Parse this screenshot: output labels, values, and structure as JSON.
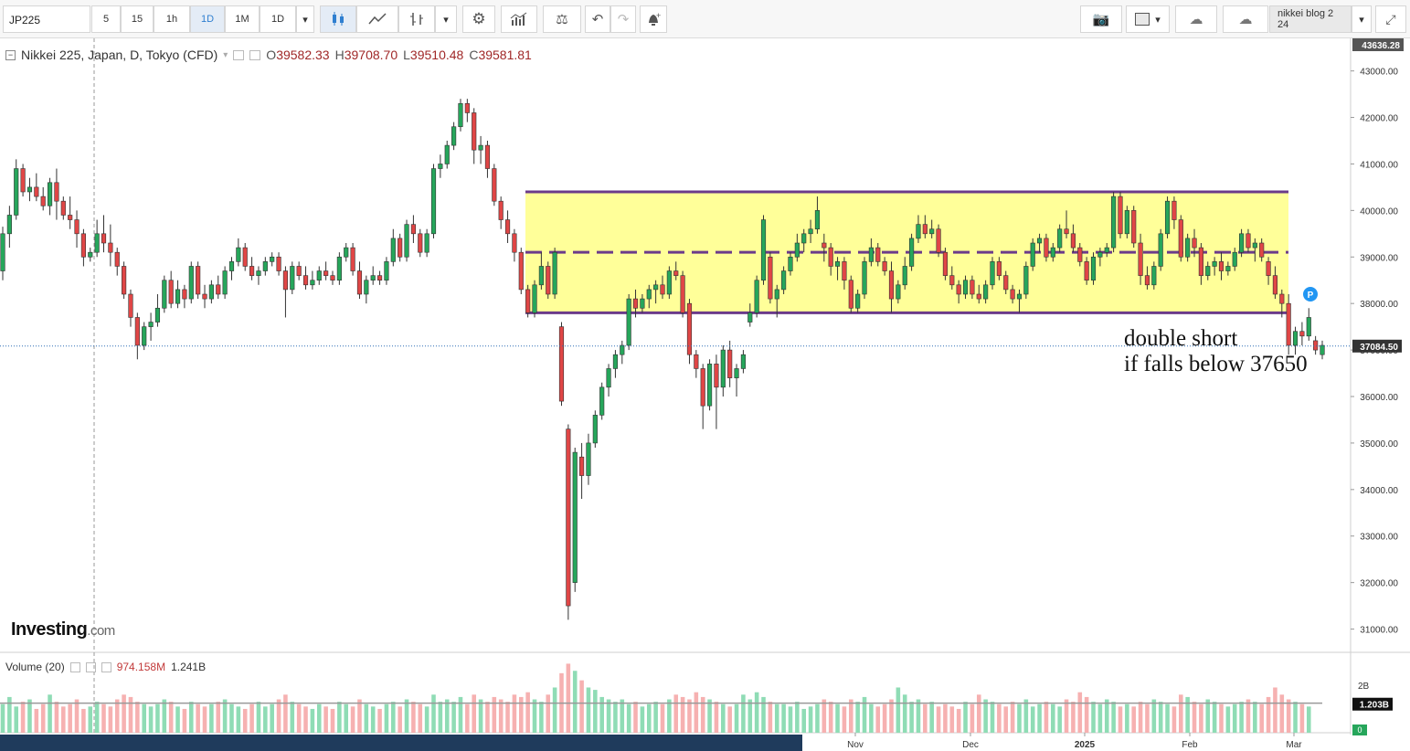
{
  "toolbar": {
    "symbol": "JP225",
    "intervals": [
      "5",
      "15",
      "1h",
      "1D",
      "1M",
      "1D"
    ],
    "active_interval": "1D",
    "layout_name": "nikkei blog 2 24"
  },
  "legend": {
    "name": "Nikkei 225, Japan, D, Tokyo (CFD)",
    "o_label": "O",
    "o": "39582.33",
    "h_label": "H",
    "h": "39708.70",
    "l_label": "L",
    "l": "39510.48",
    "c_label": "C",
    "c": "39581.81"
  },
  "volume_legend": {
    "name": "Volume (20)",
    "value": "974.158M",
    "avg": "1.241B"
  },
  "brand": {
    "main": "Investing",
    "suffix": ".com"
  },
  "annotation": {
    "line1": "double short",
    "line2": "if falls below 37650"
  },
  "colors": {
    "up": "#26a65b",
    "down": "#e04646",
    "zone_fill": "#ffff99",
    "zone_border": "#6b3b8a",
    "vol_up": "#8fdcb5",
    "vol_down": "#f6b1b1"
  },
  "chart_data": {
    "type": "candlestick",
    "price_axis_ticks": [
      "43000.00",
      "42000.00",
      "41000.00",
      "40000.00",
      "39000.00",
      "38000.00",
      "37000.00",
      "36000.00",
      "35000.00",
      "34000.00",
      "33000.00",
      "32000.00",
      "31000.00"
    ],
    "top_label": "43636.28",
    "last_price_label": "37084.50",
    "ylim": [
      30500,
      43700
    ],
    "time_labels": [
      "Nov",
      "Dec",
      "2025",
      "Feb",
      "Mar"
    ],
    "volume_axis": {
      "tick": "2B",
      "last_label": "1.203B",
      "zero_label": "0"
    },
    "zone": {
      "top": 40400,
      "mid": 39100,
      "bottom": 37800
    },
    "candles": [
      [
        38700,
        39650,
        38500,
        39500
      ],
      [
        39500,
        40100,
        39200,
        39900
      ],
      [
        39900,
        41100,
        39800,
        40900
      ],
      [
        40900,
        41000,
        40300,
        40400
      ],
      [
        40400,
        40700,
        40200,
        40500
      ],
      [
        40500,
        40800,
        40200,
        40300
      ],
      [
        40300,
        40500,
        40000,
        40100
      ],
      [
        40100,
        40700,
        39900,
        40600
      ],
      [
        40600,
        40900,
        39800,
        40200
      ],
      [
        40200,
        40300,
        39800,
        39900
      ],
      [
        39900,
        40300,
        39600,
        39800
      ],
      [
        39800,
        40000,
        39200,
        39500
      ],
      [
        39500,
        39600,
        38800,
        39000
      ],
      [
        39000,
        39200,
        38900,
        39100
      ],
      [
        39100,
        39800,
        39000,
        39500
      ],
      [
        39500,
        39900,
        39100,
        39300
      ],
      [
        39300,
        39700,
        38800,
        39100
      ],
      [
        39100,
        39200,
        38600,
        38800
      ],
      [
        38800,
        38900,
        38100,
        38200
      ],
      [
        38200,
        38300,
        37500,
        37700
      ],
      [
        37700,
        37800,
        36800,
        37100
      ],
      [
        37100,
        37600,
        37000,
        37500
      ],
      [
        37500,
        37800,
        37200,
        37600
      ],
      [
        37600,
        38200,
        37500,
        37900
      ],
      [
        37900,
        38600,
        37800,
        38500
      ],
      [
        38500,
        38700,
        37900,
        38000
      ],
      [
        38000,
        38500,
        37900,
        38300
      ],
      [
        38300,
        38400,
        37900,
        38100
      ],
      [
        38100,
        38900,
        38000,
        38800
      ],
      [
        38800,
        38900,
        38100,
        38200
      ],
      [
        38200,
        38400,
        37900,
        38100
      ],
      [
        38100,
        38500,
        38000,
        38400
      ],
      [
        38400,
        38600,
        38100,
        38200
      ],
      [
        38200,
        38800,
        38100,
        38700
      ],
      [
        38700,
        39000,
        38500,
        38900
      ],
      [
        38900,
        39400,
        38800,
        39200
      ],
      [
        39200,
        39300,
        38700,
        38800
      ],
      [
        38800,
        39000,
        38500,
        38600
      ],
      [
        38600,
        38800,
        38400,
        38700
      ],
      [
        38700,
        39000,
        38600,
        38900
      ],
      [
        38900,
        39100,
        38800,
        39000
      ],
      [
        39000,
        39100,
        38600,
        38700
      ],
      [
        38700,
        38800,
        37700,
        38300
      ],
      [
        38300,
        38900,
        38200,
        38800
      ],
      [
        38800,
        38900,
        38500,
        38600
      ],
      [
        38600,
        38800,
        38300,
        38400
      ],
      [
        38400,
        38700,
        38300,
        38500
      ],
      [
        38500,
        38800,
        38400,
        38700
      ],
      [
        38700,
        38900,
        38500,
        38600
      ],
      [
        38600,
        38700,
        38400,
        38500
      ],
      [
        38500,
        39100,
        38400,
        39000
      ],
      [
        39000,
        39300,
        38900,
        39200
      ],
      [
        39200,
        39300,
        38600,
        38700
      ],
      [
        38700,
        38900,
        38100,
        38200
      ],
      [
        38200,
        38600,
        38000,
        38500
      ],
      [
        38500,
        38800,
        38400,
        38600
      ],
      [
        38600,
        38700,
        38400,
        38500
      ],
      [
        38500,
        39000,
        38400,
        38900
      ],
      [
        38900,
        39600,
        38800,
        39400
      ],
      [
        39400,
        39500,
        38900,
        39000
      ],
      [
        39000,
        39800,
        38900,
        39700
      ],
      [
        39700,
        39900,
        39300,
        39500
      ],
      [
        39500,
        39600,
        39000,
        39100
      ],
      [
        39100,
        39600,
        39000,
        39500
      ],
      [
        39500,
        41000,
        39400,
        40900
      ],
      [
        40900,
        41200,
        40700,
        41000
      ],
      [
        41000,
        41500,
        40900,
        41400
      ],
      [
        41400,
        41900,
        41300,
        41800
      ],
      [
        41800,
        42400,
        41700,
        42300
      ],
      [
        42300,
        42400,
        41900,
        42100
      ],
      [
        42100,
        42200,
        41000,
        41300
      ],
      [
        41300,
        41600,
        41000,
        41400
      ],
      [
        41400,
        41500,
        40700,
        40900
      ],
      [
        40900,
        41000,
        40100,
        40200
      ],
      [
        40200,
        40300,
        39600,
        39800
      ],
      [
        39800,
        40000,
        39300,
        39500
      ],
      [
        39500,
        39600,
        38900,
        39100
      ],
      [
        39100,
        39200,
        38200,
        38300
      ],
      [
        38300,
        38400,
        37700,
        37800
      ],
      [
        37800,
        38500,
        37700,
        38400
      ],
      [
        38400,
        39100,
        38300,
        38800
      ],
      [
        38800,
        38900,
        38100,
        38200
      ],
      [
        38200,
        39200,
        38100,
        39100
      ],
      [
        37500,
        37600,
        35800,
        35900
      ],
      [
        35300,
        35400,
        31200,
        31500
      ],
      [
        32000,
        34900,
        31800,
        34800
      ],
      [
        34700,
        35000,
        33800,
        34300
      ],
      [
        34300,
        35200,
        34100,
        35000
      ],
      [
        35000,
        35700,
        34900,
        35600
      ],
      [
        35600,
        36300,
        35500,
        36200
      ],
      [
        36200,
        36700,
        36000,
        36600
      ],
      [
        36600,
        37000,
        36400,
        36900
      ],
      [
        36900,
        37200,
        36700,
        37100
      ],
      [
        37100,
        38200,
        37000,
        38100
      ],
      [
        38100,
        38300,
        37700,
        37900
      ],
      [
        37900,
        38200,
        37800,
        38100
      ],
      [
        38100,
        38400,
        37900,
        38300
      ],
      [
        38300,
        38500,
        38000,
        38400
      ],
      [
        38400,
        38600,
        38100,
        38200
      ],
      [
        38200,
        38800,
        38100,
        38700
      ],
      [
        38700,
        38900,
        38500,
        38600
      ],
      [
        38600,
        38700,
        37700,
        37800
      ],
      [
        38000,
        38100,
        36700,
        36900
      ],
      [
        36900,
        37000,
        36400,
        36600
      ],
      [
        36600,
        36700,
        35300,
        35800
      ],
      [
        35800,
        36800,
        35700,
        36700
      ],
      [
        36700,
        36900,
        35300,
        36200
      ],
      [
        36200,
        37100,
        36000,
        37000
      ],
      [
        37000,
        37200,
        36200,
        36400
      ],
      [
        36400,
        36700,
        36000,
        36600
      ],
      [
        36600,
        37000,
        36500,
        36900
      ],
      [
        37600,
        38000,
        37500,
        37800
      ],
      [
        37800,
        38600,
        37700,
        38500
      ],
      [
        38500,
        39900,
        38400,
        39800
      ],
      [
        39000,
        39100,
        38000,
        38100
      ],
      [
        38100,
        38400,
        37700,
        38300
      ],
      [
        38300,
        38800,
        38200,
        38700
      ],
      [
        38700,
        39100,
        38600,
        39000
      ],
      [
        39000,
        39500,
        38900,
        39300
      ],
      [
        39300,
        39600,
        39100,
        39500
      ],
      [
        39500,
        39800,
        39300,
        39600
      ],
      [
        39600,
        40300,
        39500,
        40000
      ],
      [
        39300,
        39500,
        38900,
        39200
      ],
      [
        39200,
        39300,
        38600,
        38800
      ],
      [
        38800,
        39000,
        38500,
        38900
      ],
      [
        38900,
        39000,
        38300,
        38500
      ],
      [
        38500,
        38600,
        37800,
        37900
      ],
      [
        37900,
        38300,
        37800,
        38200
      ],
      [
        38200,
        39000,
        38100,
        38900
      ],
      [
        38900,
        39400,
        38800,
        39200
      ],
      [
        39200,
        39300,
        38800,
        38900
      ],
      [
        38900,
        39000,
        38600,
        38700
      ],
      [
        38700,
        38900,
        37800,
        38100
      ],
      [
        38100,
        38500,
        38000,
        38400
      ],
      [
        38400,
        39000,
        38300,
        38800
      ],
      [
        38800,
        39500,
        38700,
        39400
      ],
      [
        39400,
        39900,
        39300,
        39700
      ],
      [
        39700,
        39900,
        39400,
        39500
      ],
      [
        39500,
        39800,
        39400,
        39600
      ],
      [
        39600,
        39700,
        39000,
        39100
      ],
      [
        39100,
        39200,
        38500,
        38600
      ],
      [
        38600,
        38800,
        38300,
        38400
      ],
      [
        38400,
        38500,
        38000,
        38200
      ],
      [
        38200,
        38600,
        38100,
        38500
      ],
      [
        38500,
        38600,
        38100,
        38200
      ],
      [
        38200,
        38400,
        38000,
        38100
      ],
      [
        38100,
        38500,
        38000,
        38400
      ],
      [
        38400,
        39000,
        38300,
        38900
      ],
      [
        38900,
        39000,
        38500,
        38600
      ],
      [
        38600,
        38700,
        38200,
        38300
      ],
      [
        38300,
        38400,
        38000,
        38100
      ],
      [
        38100,
        38300,
        37800,
        38200
      ],
      [
        38200,
        38900,
        38100,
        38800
      ],
      [
        38800,
        39400,
        38700,
        39300
      ],
      [
        39300,
        39500,
        39100,
        39400
      ],
      [
        39400,
        39500,
        38900,
        39000
      ],
      [
        39000,
        39300,
        38900,
        39200
      ],
      [
        39200,
        39700,
        39100,
        39600
      ],
      [
        39600,
        40000,
        39400,
        39500
      ],
      [
        39500,
        39700,
        39100,
        39200
      ],
      [
        39200,
        39300,
        38800,
        38900
      ],
      [
        38900,
        39000,
        38400,
        38500
      ],
      [
        38500,
        39100,
        38400,
        39000
      ],
      [
        39000,
        39200,
        38800,
        39100
      ],
      [
        39100,
        39300,
        39000,
        39200
      ],
      [
        39200,
        40400,
        39100,
        40300
      ],
      [
        40300,
        40400,
        39400,
        39500
      ],
      [
        39500,
        40100,
        39400,
        40000
      ],
      [
        40000,
        40100,
        39200,
        39300
      ],
      [
        39300,
        39500,
        38400,
        38600
      ],
      [
        38600,
        38800,
        38300,
        38400
      ],
      [
        38400,
        38900,
        38300,
        38800
      ],
      [
        38800,
        39600,
        38700,
        39500
      ],
      [
        39500,
        40300,
        39400,
        40200
      ],
      [
        40200,
        40300,
        39600,
        39800
      ],
      [
        39800,
        39900,
        38900,
        39000
      ],
      [
        39000,
        39500,
        38900,
        39400
      ],
      [
        39400,
        39600,
        39000,
        39200
      ],
      [
        39200,
        39300,
        38400,
        38600
      ],
      [
        38600,
        38900,
        38500,
        38800
      ],
      [
        38800,
        39000,
        38600,
        38900
      ],
      [
        38900,
        39100,
        38500,
        38700
      ],
      [
        38700,
        38900,
        38600,
        38800
      ],
      [
        38800,
        39200,
        38700,
        39100
      ],
      [
        39100,
        39600,
        39000,
        39500
      ],
      [
        39500,
        39600,
        39100,
        39200
      ],
      [
        39200,
        39400,
        38900,
        39300
      ],
      [
        39300,
        39400,
        38900,
        39000
      ],
      [
        38900,
        39000,
        38400,
        38600
      ],
      [
        38600,
        38800,
        38100,
        38200
      ],
      [
        38200,
        38300,
        37700,
        38000
      ],
      [
        38000,
        38200,
        36900,
        37100
      ],
      [
        37100,
        37500,
        36900,
        37400
      ],
      [
        37400,
        37600,
        37100,
        37300
      ],
      [
        37300,
        37900,
        37200,
        37700
      ],
      [
        37200,
        37300,
        36900,
        37000
      ],
      [
        36900,
        37200,
        36800,
        37100
      ]
    ],
    "volume": [
      1.2,
      1.5,
      1.1,
      1.3,
      1.4,
      1.0,
      1.2,
      1.6,
      1.3,
      1.1,
      1.2,
      1.4,
      1.0,
      1.1,
      1.3,
      1.2,
      1.1,
      1.4,
      1.6,
      1.5,
      1.3,
      1.2,
      1.1,
      1.2,
      1.4,
      1.3,
      1.1,
      1.0,
      1.3,
      1.2,
      1.1,
      1.2,
      1.3,
      1.4,
      1.2,
      1.1,
      1.0,
      1.2,
      1.3,
      1.1,
      1.2,
      1.4,
      1.6,
      1.3,
      1.2,
      1.1,
      1.0,
      1.2,
      1.1,
      1.0,
      1.3,
      1.2,
      1.1,
      1.4,
      1.2,
      1.1,
      1.0,
      1.2,
      1.3,
      1.1,
      1.4,
      1.3,
      1.2,
      1.1,
      1.6,
      1.3,
      1.4,
      1.3,
      1.5,
      1.2,
      1.6,
      1.4,
      1.3,
      1.5,
      1.4,
      1.3,
      1.6,
      1.5,
      1.7,
      1.4,
      1.3,
      1.6,
      1.9,
      2.5,
      2.9,
      2.6,
      2.2,
      1.9,
      1.8,
      1.5,
      1.4,
      1.3,
      1.4,
      1.2,
      1.3,
      1.1,
      1.2,
      1.3,
      1.2,
      1.4,
      1.6,
      1.5,
      1.4,
      1.7,
      1.5,
      1.4,
      1.3,
      1.2,
      1.1,
      1.2,
      1.6,
      1.4,
      1.7,
      1.5,
      1.3,
      1.2,
      1.2,
      1.1,
      1.3,
      1.0,
      1.1,
      1.2,
      1.4,
      1.3,
      1.2,
      1.1,
      1.4,
      1.3,
      1.5,
      1.2,
      1.1,
      1.2,
      1.4,
      1.9,
      1.6,
      1.3,
      1.4,
      1.2,
      1.3,
      1.1,
      1.2,
      1.1,
      1.0,
      1.3,
      1.2,
      1.6,
      1.4,
      1.3,
      1.2,
      1.1,
      1.3,
      1.2,
      1.4,
      1.1,
      1.2,
      1.3,
      1.2,
      1.1,
      1.4,
      1.3,
      1.7,
      1.5,
      1.3,
      1.2,
      1.4,
      1.3,
      1.1,
      1.2,
      1.1,
      1.3,
      1.2,
      1.4,
      1.3,
      1.2,
      1.1,
      1.6,
      1.5,
      1.3,
      1.2,
      1.4,
      1.3,
      1.2,
      1.1,
      1.2,
      1.3,
      1.4,
      1.3,
      1.2,
      1.5,
      1.9,
      1.6,
      1.4,
      1.3,
      1.2,
      1.1
    ],
    "volume_avg": 1.24,
    "volume_ylim": [
      0,
      3.3
    ],
    "annotation_level": 37650,
    "annotation_text": [
      "double short",
      "if falls below 37650"
    ]
  }
}
